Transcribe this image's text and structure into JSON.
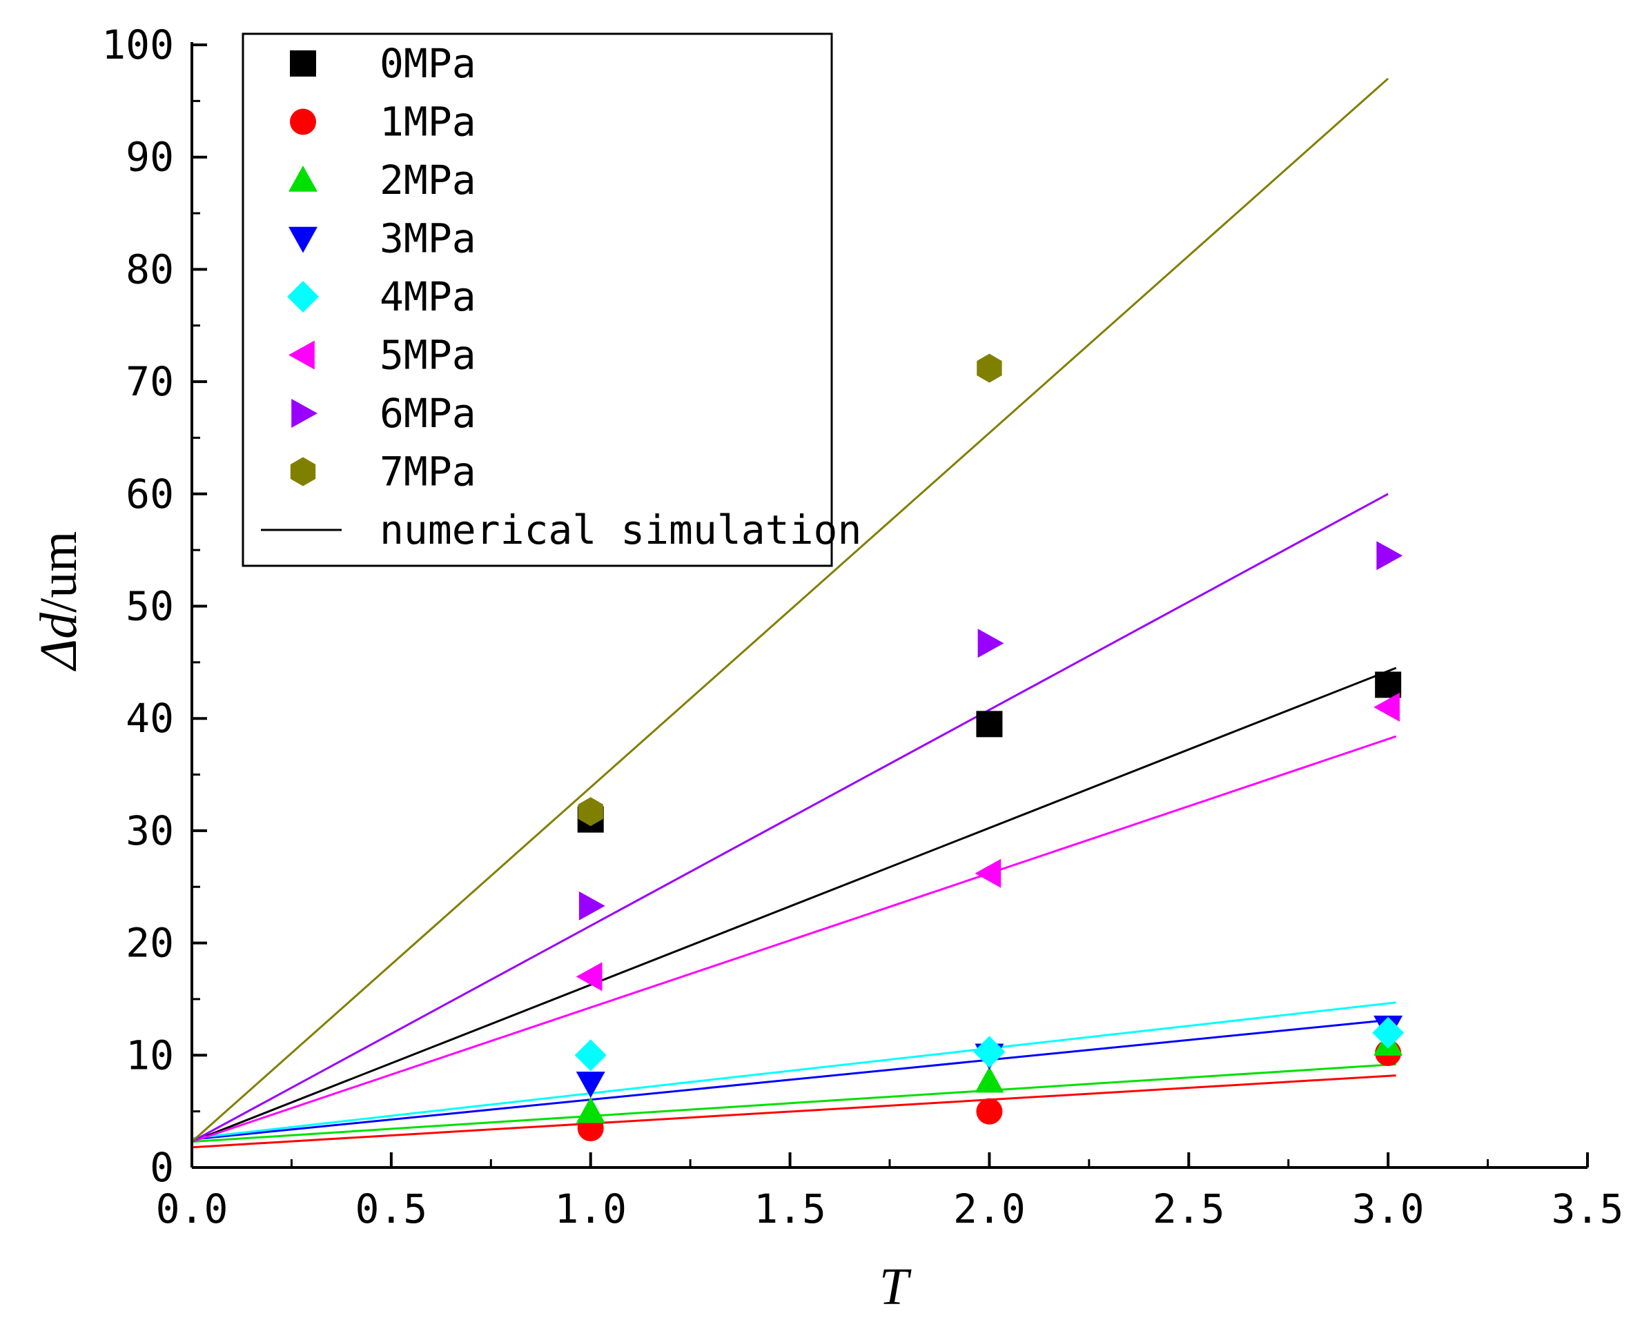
{
  "chart_data": {
    "type": "scatter",
    "title": "",
    "xlabel": "T",
    "ylabel": {
      "symbol": "Δd",
      "separator": "/",
      "unit": "um"
    },
    "xlim": [
      0,
      3.5
    ],
    "ylim": [
      0,
      100
    ],
    "x_ticks": [
      0,
      0.5,
      1,
      1.5,
      2,
      2.5,
      3,
      3.5
    ],
    "x_tick_labels": [
      "0.0",
      "0.5",
      "1.0",
      "1.5",
      "2.0",
      "2.5",
      "3.0",
      "3.5"
    ],
    "y_ticks": [
      0,
      10,
      20,
      30,
      40,
      50,
      60,
      70,
      80,
      90,
      100
    ],
    "y_tick_labels": [
      "0",
      "10",
      "20",
      "30",
      "40",
      "50",
      "60",
      "70",
      "80",
      "90",
      "100"
    ],
    "legend_position": "top-left",
    "simulation_label": "numerical simulation",
    "series": [
      {
        "name": "0MPa",
        "color": "#000000",
        "marker": "square",
        "x": [
          1,
          2,
          3
        ],
        "values": [
          31,
          39.5,
          43
        ],
        "sim_x": [
          0,
          3.02
        ],
        "sim_y": [
          2.3,
          44.5
        ]
      },
      {
        "name": "1MPa",
        "color": "#ff0000",
        "marker": "circle",
        "x": [
          1,
          2,
          3
        ],
        "values": [
          3.5,
          5,
          10.2
        ],
        "sim_x": [
          0,
          3.02
        ],
        "sim_y": [
          1.8,
          8.2
        ]
      },
      {
        "name": "2MPa",
        "color": "#00e000",
        "marker": "triangle-up",
        "x": [
          1,
          2,
          3
        ],
        "values": [
          5,
          7.7,
          11
        ],
        "sim_x": [
          0,
          3.02
        ],
        "sim_y": [
          2.3,
          9.2
        ]
      },
      {
        "name": "3MPa",
        "color": "#0000ff",
        "marker": "triangle-down",
        "x": [
          1,
          2,
          3
        ],
        "values": [
          7.5,
          10,
          12.5
        ],
        "sim_x": [
          0,
          3.02
        ],
        "sim_y": [
          2.5,
          13.2
        ]
      },
      {
        "name": "4MPa",
        "color": "#00ffff",
        "marker": "diamond",
        "x": [
          1,
          2,
          3
        ],
        "values": [
          10,
          10.3,
          12
        ],
        "sim_x": [
          0,
          3.02
        ],
        "sim_y": [
          2.6,
          14.7
        ]
      },
      {
        "name": "5MPa",
        "color": "#ff00ff",
        "marker": "triangle-left",
        "x": [
          1,
          2,
          3
        ],
        "values": [
          17,
          26.2,
          41
        ],
        "sim_x": [
          0,
          3.02
        ],
        "sim_y": [
          2.3,
          38.4
        ]
      },
      {
        "name": "6MPa",
        "color": "#9900ff",
        "marker": "triangle-right",
        "x": [
          1,
          2,
          3
        ],
        "values": [
          23.3,
          46.7,
          54.5
        ],
        "sim_x": [
          0,
          3.0
        ],
        "sim_y": [
          2.3,
          60
        ]
      },
      {
        "name": "7MPa",
        "color": "#808000",
        "marker": "hexagon",
        "x": [
          1,
          2
        ],
        "values": [
          31.7,
          71.2
        ],
        "sim_x": [
          0,
          3.0
        ],
        "sim_y": [
          2.3,
          97
        ]
      }
    ],
    "simulation_legend_color": "#000000"
  }
}
